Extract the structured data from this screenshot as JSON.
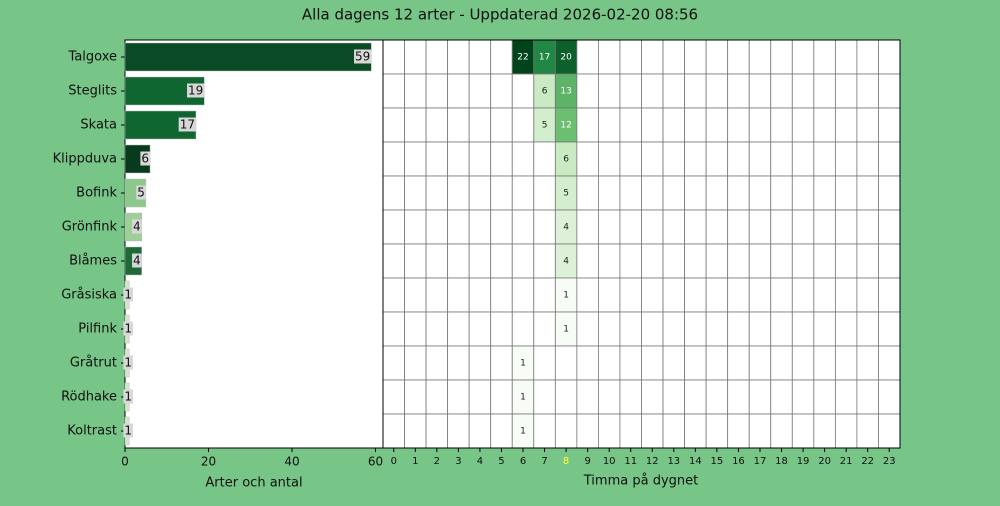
{
  "chart_data": [
    {
      "type": "barh",
      "title": "Alla dagens 12 arter - Uppdaterad 2026-02-20 08:56",
      "categories": [
        "Talgoxe",
        "Steglits",
        "Skata",
        "Klippduva",
        "Bofink",
        "Grönfink",
        "Blåmes",
        "Gråsiska",
        "Pilfink",
        "Gråtrut",
        "Rödhake",
        "Koltrast"
      ],
      "values": [
        59,
        19,
        17,
        6,
        5,
        4,
        4,
        1,
        1,
        1,
        1,
        1
      ],
      "colors": [
        "#0a4a25",
        "#0f6630",
        "#0f6630",
        "#083b1d",
        "#8cc88c",
        "#9ecf98",
        "#1d6a37",
        "#cfe8c8",
        "#cfe8c8",
        "#cfe8c8",
        "#cfe8c8",
        "#cfe8c8"
      ],
      "xlim": [
        0,
        61.8
      ],
      "xticks": [
        0,
        20,
        40,
        60
      ],
      "xlabel": "Arter och antal"
    },
    {
      "type": "heatmap",
      "x": [
        0,
        1,
        2,
        3,
        4,
        5,
        6,
        7,
        8,
        9,
        10,
        11,
        12,
        13,
        14,
        15,
        16,
        17,
        18,
        19,
        20,
        21,
        22,
        23
      ],
      "highlight_x": 8,
      "xlabel": "Timma på dygnet",
      "colormap": "Greens",
      "values": [
        [
          null,
          null,
          null,
          null,
          null,
          null,
          22,
          17,
          20,
          null,
          null,
          null,
          null,
          null,
          null,
          null,
          null,
          null,
          null,
          null,
          null,
          null,
          null,
          null
        ],
        [
          null,
          null,
          null,
          null,
          null,
          null,
          null,
          6,
          13,
          null,
          null,
          null,
          null,
          null,
          null,
          null,
          null,
          null,
          null,
          null,
          null,
          null,
          null,
          null
        ],
        [
          null,
          null,
          null,
          null,
          null,
          null,
          null,
          5,
          12,
          null,
          null,
          null,
          null,
          null,
          null,
          null,
          null,
          null,
          null,
          null,
          null,
          null,
          null,
          null
        ],
        [
          null,
          null,
          null,
          null,
          null,
          null,
          null,
          null,
          6,
          null,
          null,
          null,
          null,
          null,
          null,
          null,
          null,
          null,
          null,
          null,
          null,
          null,
          null,
          null
        ],
        [
          null,
          null,
          null,
          null,
          null,
          null,
          null,
          null,
          5,
          null,
          null,
          null,
          null,
          null,
          null,
          null,
          null,
          null,
          null,
          null,
          null,
          null,
          null,
          null
        ],
        [
          null,
          null,
          null,
          null,
          null,
          null,
          null,
          null,
          4,
          null,
          null,
          null,
          null,
          null,
          null,
          null,
          null,
          null,
          null,
          null,
          null,
          null,
          null,
          null
        ],
        [
          null,
          null,
          null,
          null,
          null,
          null,
          null,
          null,
          4,
          null,
          null,
          null,
          null,
          null,
          null,
          null,
          null,
          null,
          null,
          null,
          null,
          null,
          null,
          null
        ],
        [
          null,
          null,
          null,
          null,
          null,
          null,
          null,
          null,
          1,
          null,
          null,
          null,
          null,
          null,
          null,
          null,
          null,
          null,
          null,
          null,
          null,
          null,
          null,
          null
        ],
        [
          null,
          null,
          null,
          null,
          null,
          null,
          null,
          null,
          1,
          null,
          null,
          null,
          null,
          null,
          null,
          null,
          null,
          null,
          null,
          null,
          null,
          null,
          null,
          null
        ],
        [
          null,
          null,
          null,
          null,
          null,
          null,
          1,
          null,
          null,
          null,
          null,
          null,
          null,
          null,
          null,
          null,
          null,
          null,
          null,
          null,
          null,
          null,
          null,
          null
        ],
        [
          null,
          null,
          null,
          null,
          null,
          null,
          1,
          null,
          null,
          null,
          null,
          null,
          null,
          null,
          null,
          null,
          null,
          null,
          null,
          null,
          null,
          null,
          null,
          null
        ],
        [
          null,
          null,
          null,
          null,
          null,
          null,
          1,
          null,
          null,
          null,
          null,
          null,
          null,
          null,
          null,
          null,
          null,
          null,
          null,
          null,
          null,
          null,
          null,
          null
        ]
      ]
    }
  ]
}
